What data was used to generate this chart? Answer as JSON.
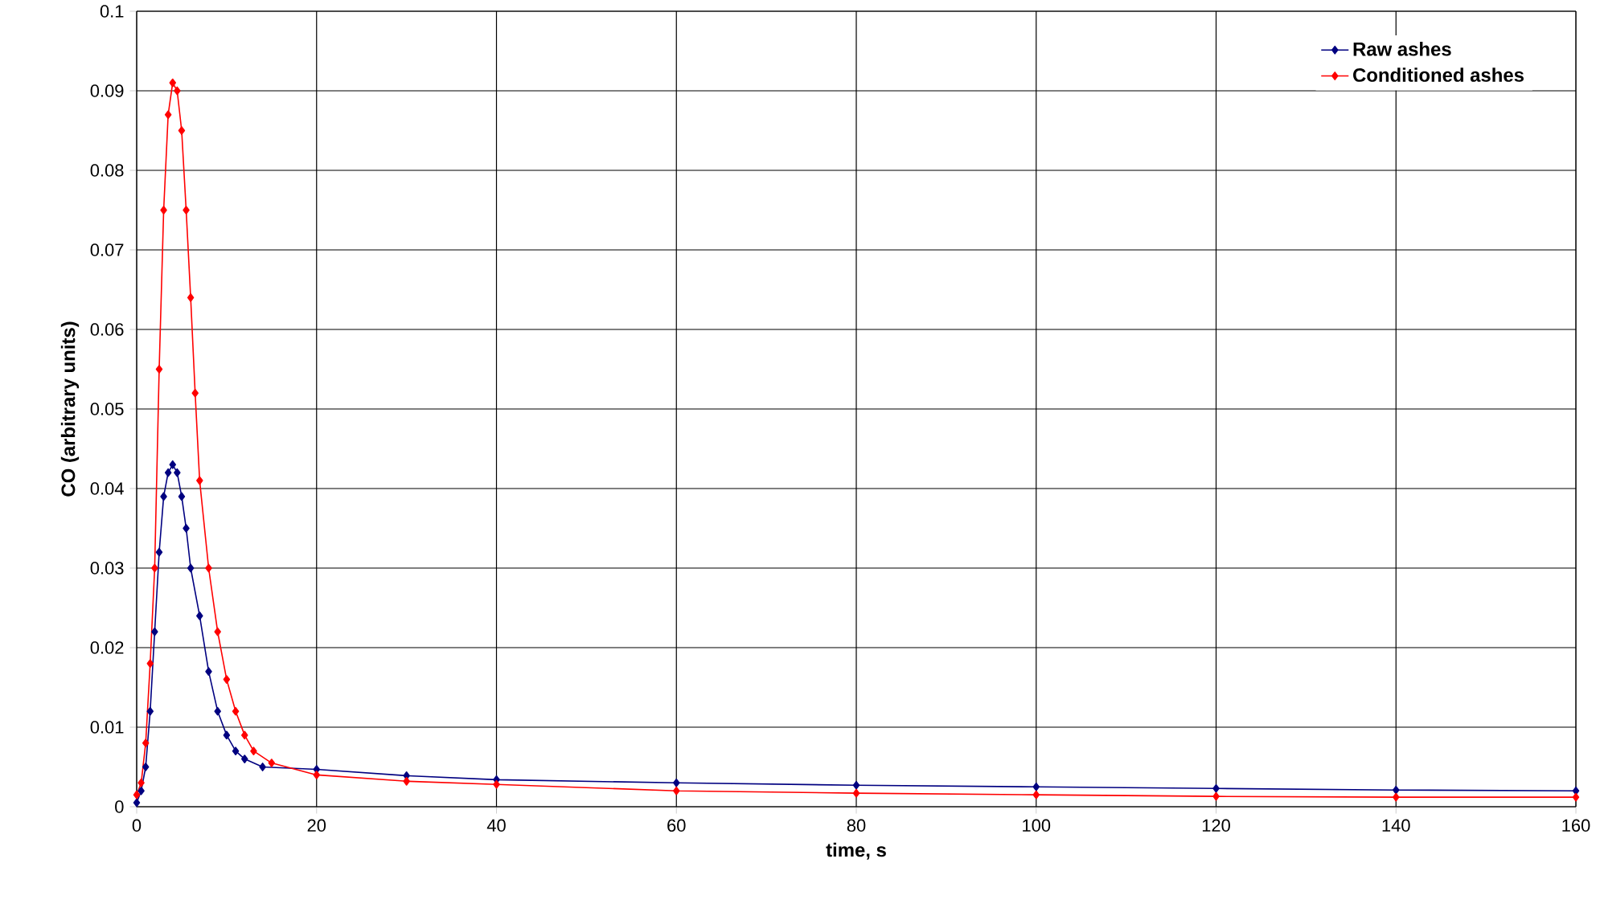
{
  "chart_data": {
    "type": "line",
    "xlabel": "time, s",
    "ylabel": "CO (arbitrary units)",
    "xlim": [
      0,
      160
    ],
    "xticks": [
      0,
      20,
      40,
      60,
      80,
      100,
      120,
      140,
      160
    ],
    "ylim": [
      0,
      0.1
    ],
    "yticks": [
      0,
      0.01,
      0.02,
      0.03,
      0.04,
      0.05,
      0.06,
      0.07,
      0.08,
      0.09,
      0.1
    ],
    "grid": true,
    "legend": "top right",
    "marker": "diamond",
    "line_style": "solid",
    "series": [
      {
        "name": "Raw ashes",
        "color": "#000080",
        "x": [
          0,
          0.5,
          1,
          1.5,
          2,
          2.5,
          3,
          3.5,
          4,
          4.5,
          5,
          5.5,
          6,
          7,
          8,
          9,
          10,
          11,
          12,
          14,
          20,
          30,
          40,
          60,
          80,
          100,
          120,
          140,
          160
        ],
        "values": [
          0.0005,
          0.002,
          0.005,
          0.012,
          0.022,
          0.032,
          0.039,
          0.042,
          0.043,
          0.042,
          0.039,
          0.035,
          0.03,
          0.024,
          0.017,
          0.012,
          0.009,
          0.007,
          0.006,
          0.005,
          0.0047,
          0.0039,
          0.0034,
          0.003,
          0.0027,
          0.0025,
          0.0023,
          0.0021,
          0.002
        ]
      },
      {
        "name": "Conditioned ashes",
        "color": "#ff0000",
        "x": [
          0,
          0.5,
          1,
          1.5,
          2,
          2.5,
          3,
          3.5,
          4,
          4.5,
          5,
          5.5,
          6,
          6.5,
          7,
          8,
          9,
          10,
          11,
          12,
          13,
          15,
          20,
          30,
          40,
          60,
          80,
          100,
          120,
          140,
          160
        ],
        "values": [
          0.0015,
          0.003,
          0.008,
          0.018,
          0.03,
          0.055,
          0.075,
          0.087,
          0.091,
          0.09,
          0.085,
          0.075,
          0.064,
          0.052,
          0.041,
          0.03,
          0.022,
          0.016,
          0.012,
          0.009,
          0.007,
          0.0055,
          0.004,
          0.0032,
          0.0028,
          0.002,
          0.0017,
          0.0015,
          0.0013,
          0.0012,
          0.0012
        ]
      }
    ]
  }
}
